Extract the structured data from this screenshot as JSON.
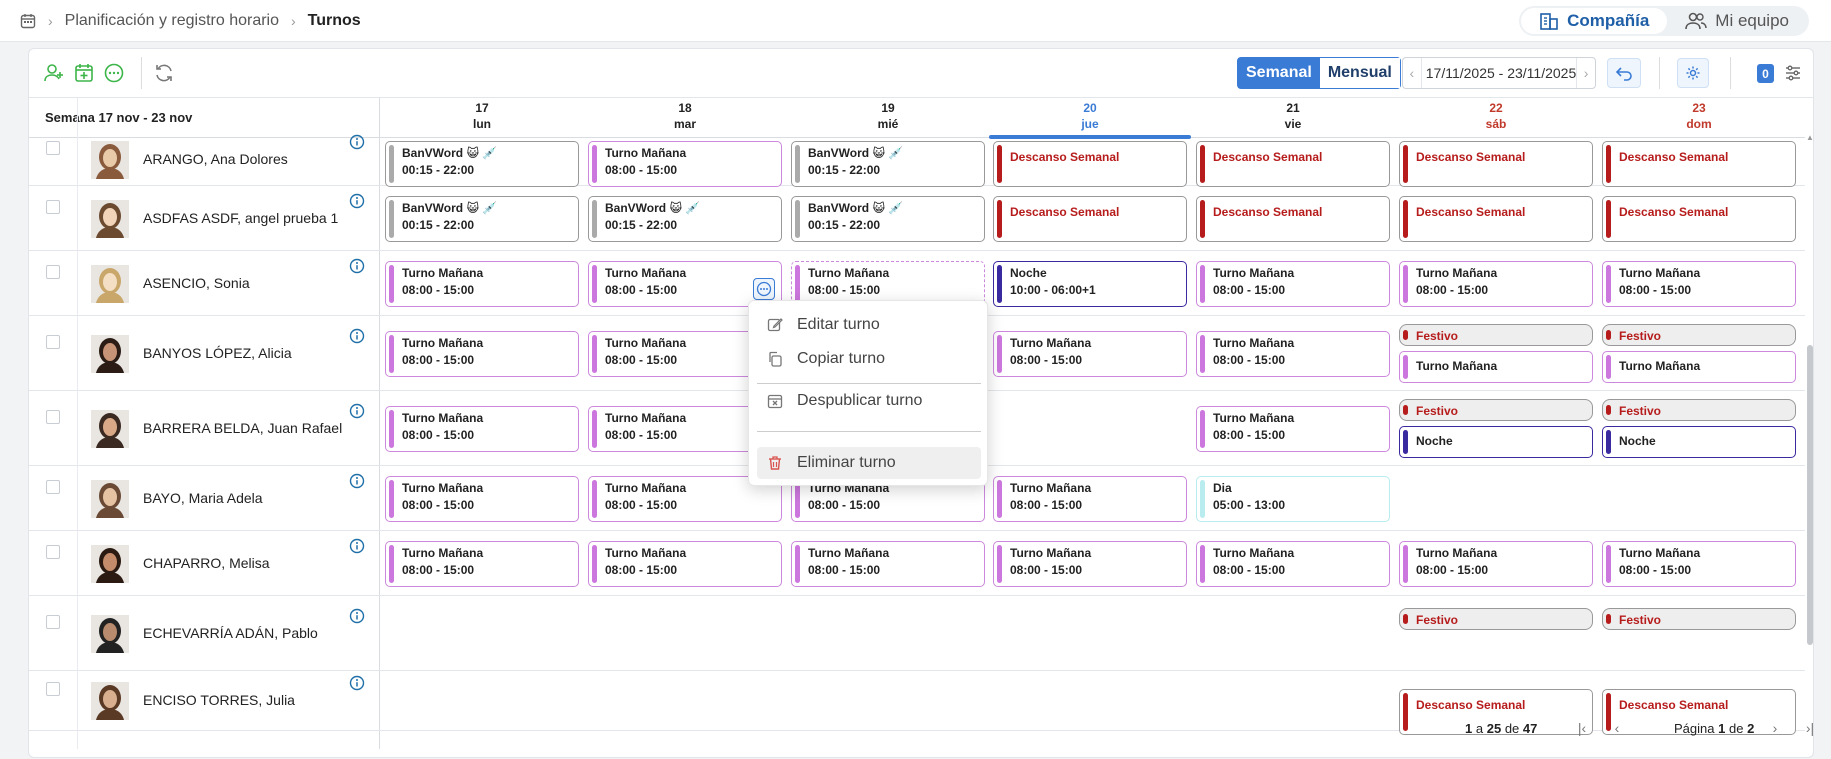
{
  "breadcrumb": {
    "items": [
      "Planificación y registro horario",
      "Turnos"
    ]
  },
  "scope": {
    "company": "Compañía",
    "team": "Mi equipo"
  },
  "toolbar": {
    "weekly": "Semanal",
    "monthly": "Mensual",
    "date_range": "17/11/2025 - 23/11/2025",
    "filter_count": "0"
  },
  "grid": {
    "week_label": "Semana 17 nov - 23 nov",
    "days": [
      {
        "num": "17",
        "name": "lun"
      },
      {
        "num": "18",
        "name": "mar"
      },
      {
        "num": "19",
        "name": "mié"
      },
      {
        "num": "20",
        "name": "jue"
      },
      {
        "num": "21",
        "name": "vie"
      },
      {
        "num": "22",
        "name": "sáb"
      },
      {
        "num": "23",
        "name": "dom"
      }
    ]
  },
  "employees": [
    {
      "name": "ARANGO, Ana Dolores",
      "shifts": [
        {
          "type": "ban",
          "title": "BanVWord 😺 💉",
          "time": "00:15 - 22:00"
        },
        {
          "type": "morning",
          "title": "Turno Mañana",
          "time": "08:00 - 15:00"
        },
        {
          "type": "ban",
          "title": "BanVWord 😺 💉",
          "time": "00:15 - 22:00"
        },
        {
          "type": "rest",
          "title": "Descanso Semanal"
        },
        {
          "type": "rest",
          "title": "Descanso Semanal"
        },
        {
          "type": "rest",
          "title": "Descanso Semanal"
        },
        {
          "type": "rest",
          "title": "Descanso Semanal"
        }
      ]
    },
    {
      "name": "ASDFAS ASDF, angel prueba 1",
      "shifts": [
        {
          "type": "ban",
          "title": "BanVWord 😺 💉",
          "time": "00:15 - 22:00"
        },
        {
          "type": "ban",
          "title": "BanVWord 😺 💉",
          "time": "00:15 - 22:00"
        },
        {
          "type": "ban",
          "title": "BanVWord 😺 💉",
          "time": "00:15 - 22:00"
        },
        {
          "type": "rest",
          "title": "Descanso Semanal"
        },
        {
          "type": "rest",
          "title": "Descanso Semanal"
        },
        {
          "type": "rest",
          "title": "Descanso Semanal"
        },
        {
          "type": "rest",
          "title": "Descanso Semanal"
        }
      ]
    },
    {
      "name": "ASENCIO, Sonia",
      "shifts": [
        {
          "type": "morning",
          "title": "Turno Mañana",
          "time": "08:00 - 15:00"
        },
        {
          "type": "morning",
          "title": "Turno Mañana",
          "time": "08:00 - 15:00"
        },
        {
          "type": "morning",
          "title": "Turno Mañana",
          "time": "08:00 - 15:00"
        },
        {
          "type": "night",
          "title": "Noche",
          "time": "10:00 - 06:00+1"
        },
        {
          "type": "morning",
          "title": "Turno Mañana",
          "time": "08:00 - 15:00"
        },
        {
          "type": "morning",
          "title": "Turno Mañana",
          "time": "08:00 - 15:00"
        },
        {
          "type": "morning",
          "title": "Turno Mañana",
          "time": "08:00 - 15:00"
        }
      ]
    },
    {
      "name": "BANYOS LÓPEZ, Alicia",
      "shifts": [
        {
          "type": "morning",
          "title": "Turno Mañana",
          "time": "08:00 - 15:00"
        },
        {
          "type": "morning",
          "title": "Turno Mañana",
          "time": "08:00 - 15:00"
        },
        {
          "type": "none"
        },
        {
          "type": "morning",
          "title": "Turno Mañana",
          "time": "08:00 - 15:00"
        },
        {
          "type": "morning",
          "title": "Turno Mañana",
          "time": "08:00 - 15:00"
        },
        {
          "type": "holiday-stack",
          "holiday": "Festivo",
          "title": "Turno Mañana"
        },
        {
          "type": "holiday-stack",
          "holiday": "Festivo",
          "title": "Turno Mañana"
        }
      ]
    },
    {
      "name": "BARRERA BELDA, Juan Rafael",
      "shifts": [
        {
          "type": "morning",
          "title": "Turno Mañana",
          "time": "08:00 - 15:00"
        },
        {
          "type": "morning",
          "title": "Turno Mañana",
          "time": "08:00 - 15:00"
        },
        {
          "type": "none"
        },
        {
          "type": "none"
        },
        {
          "type": "morning",
          "title": "Turno Mañana",
          "time": "08:00 - 15:00"
        },
        {
          "type": "holiday-night",
          "holiday": "Festivo",
          "title": "Noche"
        },
        {
          "type": "holiday-night",
          "holiday": "Festivo",
          "title": "Noche"
        }
      ]
    },
    {
      "name": "BAYO, Maria Adela",
      "shifts": [
        {
          "type": "morning",
          "title": "Turno Mañana",
          "time": "08:00 - 15:00"
        },
        {
          "type": "morning",
          "title": "Turno Mañana",
          "time": "08:00 - 15:00"
        },
        {
          "type": "morning",
          "title": "Turno Mañana",
          "time": "08:00 - 15:00"
        },
        {
          "type": "morning",
          "title": "Turno Mañana",
          "time": "08:00 - 15:00"
        },
        {
          "type": "day",
          "title": "Dia",
          "time": "05:00 - 13:00"
        },
        {
          "type": "none"
        },
        {
          "type": "none"
        }
      ]
    },
    {
      "name": "CHAPARRO, Melisa",
      "shifts": [
        {
          "type": "morning",
          "title": "Turno Mañana",
          "time": "08:00 - 15:00"
        },
        {
          "type": "morning",
          "title": "Turno Mañana",
          "time": "08:00 - 15:00"
        },
        {
          "type": "morning",
          "title": "Turno Mañana",
          "time": "08:00 - 15:00"
        },
        {
          "type": "morning",
          "title": "Turno Mañana",
          "time": "08:00 - 15:00"
        },
        {
          "type": "morning",
          "title": "Turno Mañana",
          "time": "08:00 - 15:00"
        },
        {
          "type": "morning",
          "title": "Turno Mañana",
          "time": "08:00 - 15:00"
        },
        {
          "type": "morning",
          "title": "Turno Mañana",
          "time": "08:00 - 15:00"
        }
      ]
    },
    {
      "name": "ECHEVARRÍA ADÁN, Pablo",
      "shifts": [
        {
          "type": "none"
        },
        {
          "type": "none"
        },
        {
          "type": "none"
        },
        {
          "type": "none"
        },
        {
          "type": "none"
        },
        {
          "type": "holiday",
          "holiday": "Festivo"
        },
        {
          "type": "holiday",
          "holiday": "Festivo"
        }
      ]
    },
    {
      "name": "ENCISO TORRES, Julia",
      "shifts": [
        {
          "type": "none"
        },
        {
          "type": "none"
        },
        {
          "type": "none"
        },
        {
          "type": "none"
        },
        {
          "type": "none"
        },
        {
          "type": "rest",
          "title": "Descanso Semanal"
        },
        {
          "type": "rest",
          "title": "Descanso Semanal"
        }
      ]
    }
  ],
  "context_menu": {
    "items": [
      "Editar turno",
      "Copiar turno",
      "Despublicar turno",
      "Eliminar turno"
    ]
  },
  "pagination": {
    "from": "1",
    "to": "25",
    "total": "47",
    "word_a": "a",
    "word_de": "de",
    "page_word": "Página",
    "page": "1",
    "pages": "2"
  }
}
